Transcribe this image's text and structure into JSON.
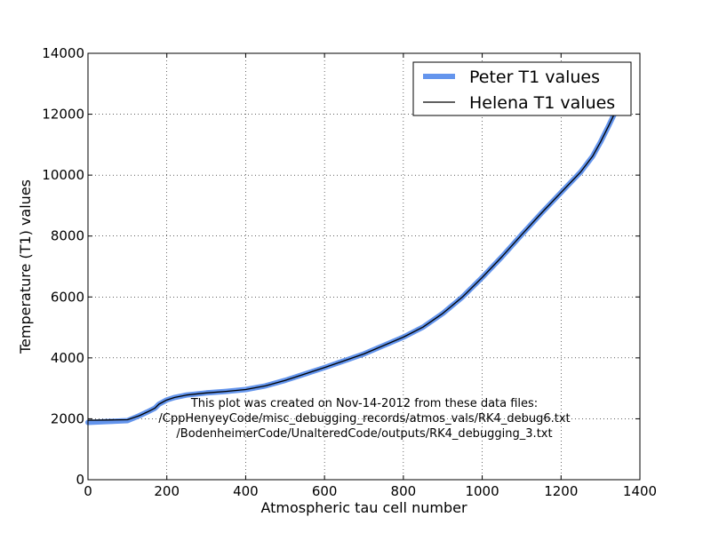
{
  "chart_data": {
    "type": "line",
    "xlabel": "Atmospheric tau cell number",
    "ylabel": "Temperature (T1) values",
    "xlim": [
      0,
      1400
    ],
    "ylim": [
      0,
      14000
    ],
    "xticks": [
      0,
      200,
      400,
      600,
      800,
      1000,
      1200,
      1400
    ],
    "yticks": [
      0,
      2000,
      4000,
      6000,
      8000,
      10000,
      12000,
      14000
    ],
    "grid": true,
    "grid_style": "dotted",
    "legend_position": "top-right",
    "x": [
      0,
      50,
      100,
      130,
      150,
      170,
      180,
      200,
      220,
      250,
      300,
      350,
      400,
      450,
      500,
      550,
      600,
      700,
      800,
      850,
      900,
      950,
      1000,
      1050,
      1100,
      1150,
      1200,
      1250,
      1280,
      1300,
      1320,
      1340,
      1345
    ],
    "series": [
      {
        "name": "Peter T1 values",
        "color": "#6495ed",
        "values": [
          1880,
          1910,
          1940,
          2100,
          2220,
          2350,
          2480,
          2620,
          2700,
          2780,
          2850,
          2900,
          2960,
          3080,
          3260,
          3470,
          3680,
          4130,
          4680,
          5010,
          5460,
          6000,
          6640,
          7320,
          8040,
          8750,
          9430,
          10110,
          10620,
          11080,
          11600,
          12140,
          12280
        ]
      },
      {
        "name": "Helena T1 values",
        "color": "#000000",
        "values": [
          1950,
          1960,
          1970,
          2100,
          2220,
          2350,
          2480,
          2620,
          2700,
          2780,
          2850,
          2900,
          2960,
          3080,
          3260,
          3470,
          3680,
          4130,
          4680,
          5010,
          5460,
          6000,
          6640,
          7320,
          8040,
          8750,
          9430,
          10110,
          10620,
          11080,
          11600,
          12140,
          12280
        ]
      }
    ],
    "annotation": [
      "This plot was created on Nov-14-2012 from these data files:",
      "/CppHenyeyCode/misc_debugging_records/atmos_vals/RK4_debug6.txt",
      "/BodenheimerCode/UnalteredCode/outputs/RK4_debugging_3.txt"
    ]
  }
}
